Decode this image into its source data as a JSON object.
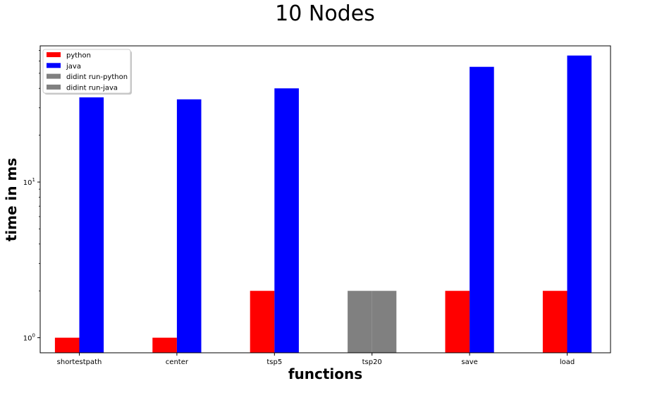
{
  "chart_data": {
    "type": "bar",
    "title": "10 Nodes",
    "xlabel": "functions",
    "ylabel": "time in ms",
    "yscale": "log",
    "ylim": [
      0.8,
      75
    ],
    "grid": false,
    "legend_position": "top-left",
    "categories": [
      "shortestpath",
      "center",
      "tsp5",
      "tsp20",
      "save",
      "load"
    ],
    "y_ticks": [
      {
        "value": 1,
        "base": "10",
        "exp": "0"
      },
      {
        "value": 10,
        "base": "10",
        "exp": "1"
      }
    ],
    "series": [
      {
        "name": "python",
        "color": "#ff0000",
        "values": [
          1,
          1,
          2,
          null,
          2,
          2
        ]
      },
      {
        "name": "java",
        "color": "#0000ff",
        "values": [
          35,
          34,
          40,
          null,
          55,
          65
        ]
      },
      {
        "name": "didint run-python",
        "color": "#808080",
        "values": [
          null,
          null,
          null,
          2,
          null,
          null
        ]
      },
      {
        "name": "didint run-java",
        "color": "#808080",
        "values": [
          null,
          null,
          null,
          2,
          null,
          null
        ]
      }
    ]
  }
}
